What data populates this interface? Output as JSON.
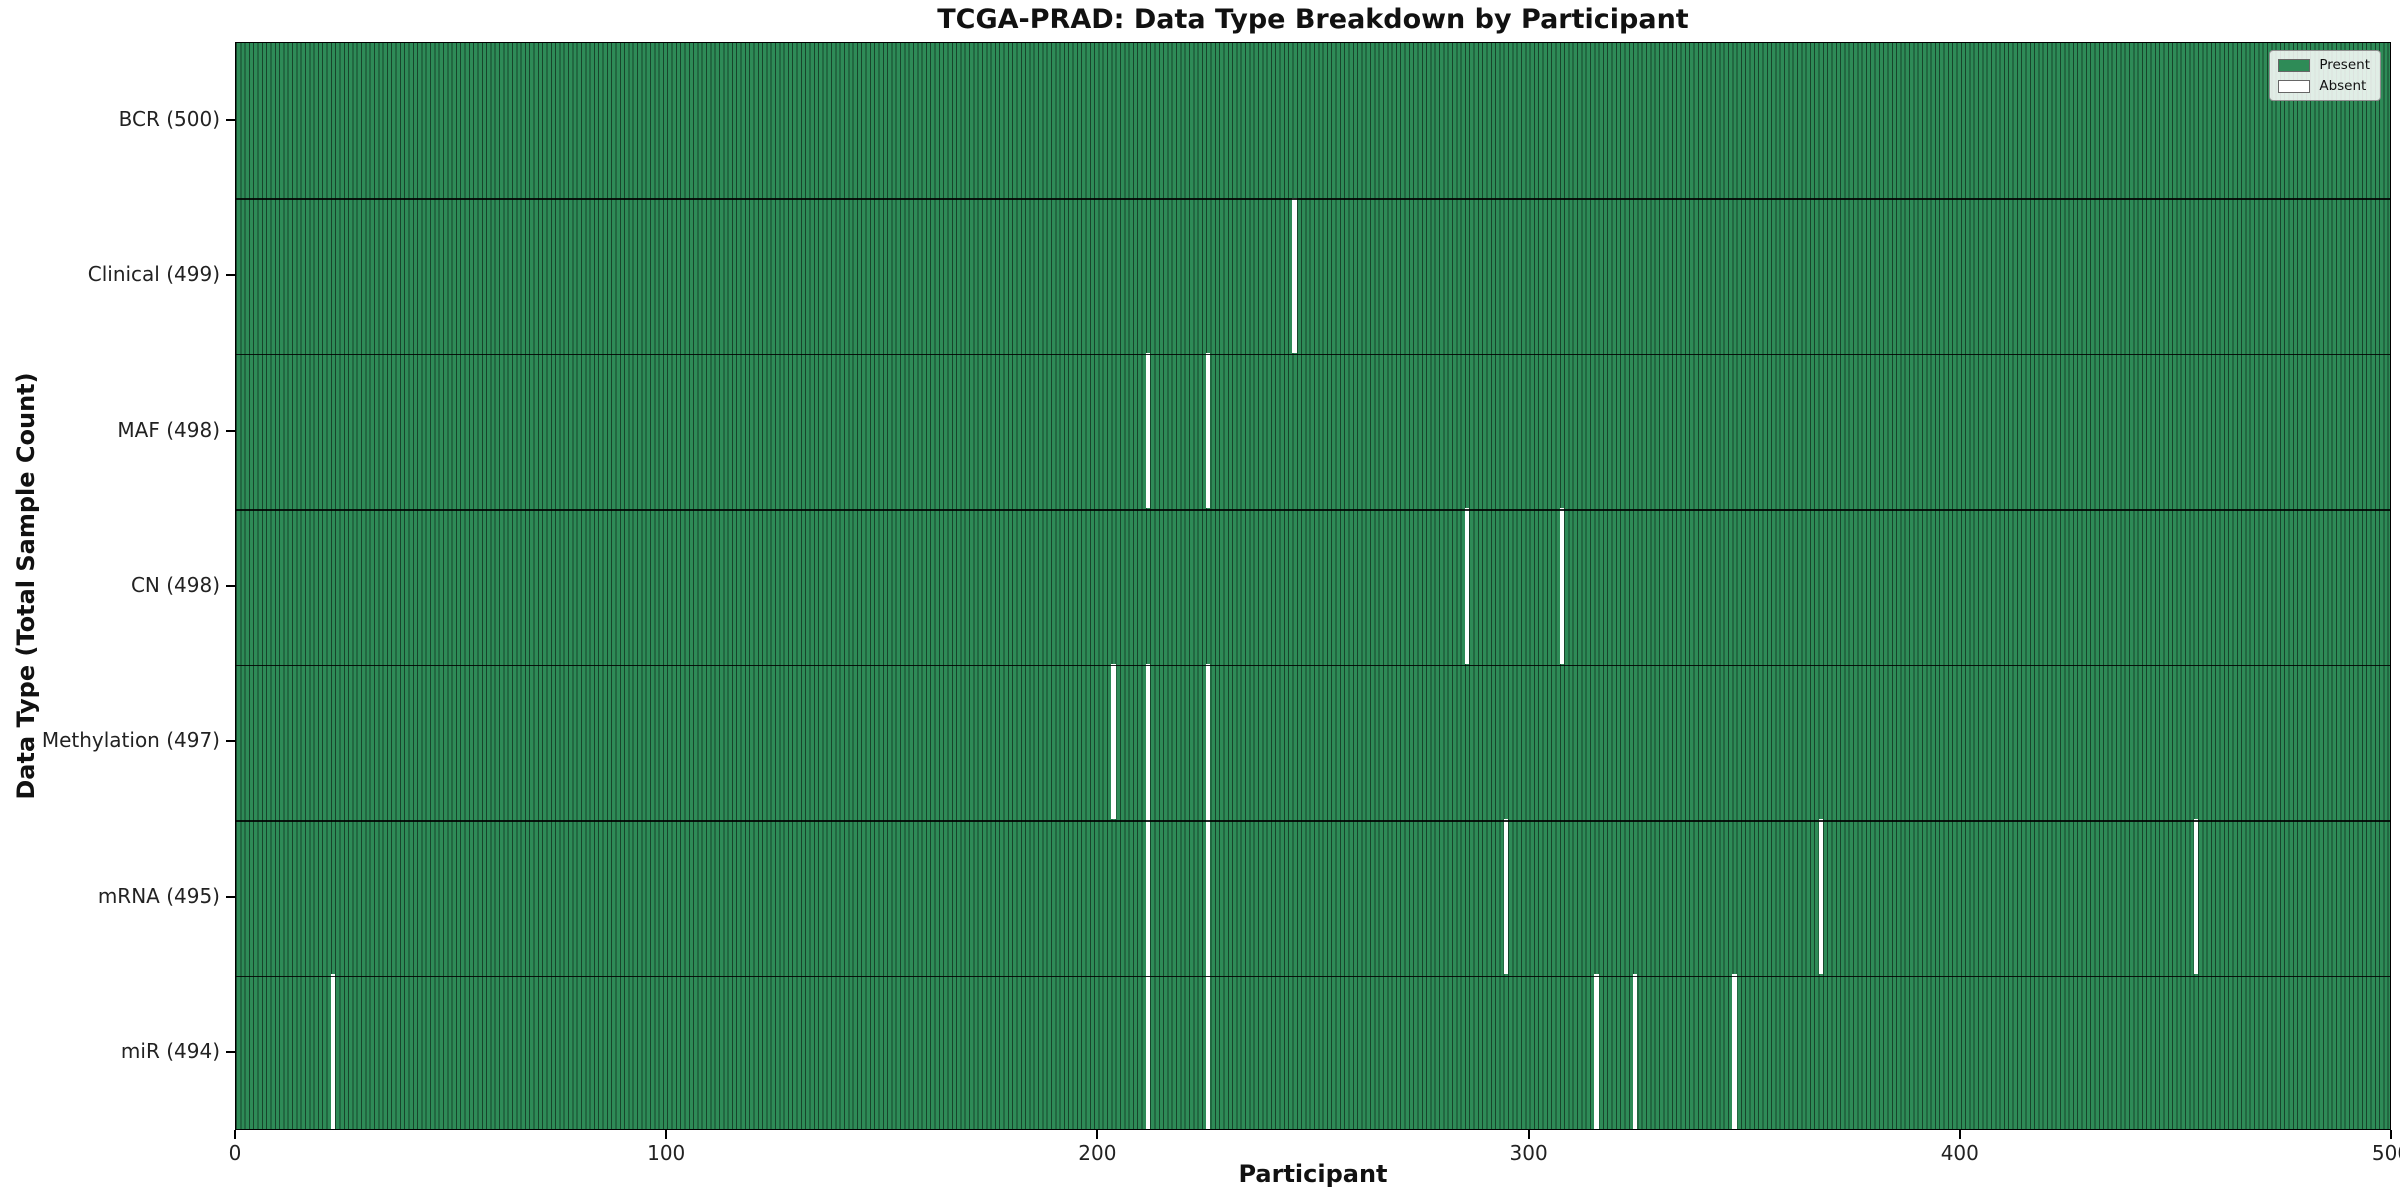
{
  "page": {
    "background": "#ffffff"
  },
  "chart_data": {
    "type": "heatmap",
    "title": "TCGA-PRAD: Data Type Breakdown by Participant",
    "xlabel": "Participant",
    "ylabel": "Data Type (Total Sample Count)",
    "xlim": [
      0,
      500
    ],
    "x_ticks": [
      0,
      100,
      200,
      300,
      400,
      500
    ],
    "n_participants": 500,
    "grid": false,
    "legend_position": "upper right",
    "legend": [
      {
        "label": "Present",
        "color": "#2e8b57"
      },
      {
        "label": "Absent",
        "color": "#ffffff"
      }
    ],
    "rows": [
      {
        "name": "BCR",
        "label": "BCR (500)",
        "present_count": 500,
        "absent_count": 0,
        "absent_participants": []
      },
      {
        "name": "Clinical",
        "label": "Clinical (499)",
        "present_count": 499,
        "absent_count": 1,
        "absent_participants": [
          245
        ]
      },
      {
        "name": "MAF",
        "label": "MAF (498)",
        "present_count": 498,
        "absent_count": 2,
        "absent_participants": [
          211,
          225
        ]
      },
      {
        "name": "CN",
        "label": "CN (498)",
        "present_count": 498,
        "absent_count": 2,
        "absent_participants": [
          285,
          307
        ]
      },
      {
        "name": "Methylation",
        "label": "Methylation (497)",
        "present_count": 497,
        "absent_count": 3,
        "absent_participants": [
          203,
          211,
          225
        ]
      },
      {
        "name": "mRNA",
        "label": "mRNA (495)",
        "present_count": 495,
        "absent_count": 5,
        "absent_participants": [
          211,
          225,
          294,
          367,
          454
        ]
      },
      {
        "name": "miR",
        "label": "miR (494)",
        "present_count": 494,
        "absent_count": 6,
        "absent_participants": [
          22,
          211,
          225,
          315,
          324,
          347
        ]
      }
    ],
    "colors": {
      "present": "#2e8b57",
      "absent": "#ffffff",
      "cell_edge": "rgba(0,0,0,0.5)",
      "row_separator": "rgba(0,0,0,0.85)",
      "plot_border": "#000000",
      "legend_background": "rgba(255,255,255,0.85)",
      "legend_border": "#8f8f8f"
    }
  }
}
